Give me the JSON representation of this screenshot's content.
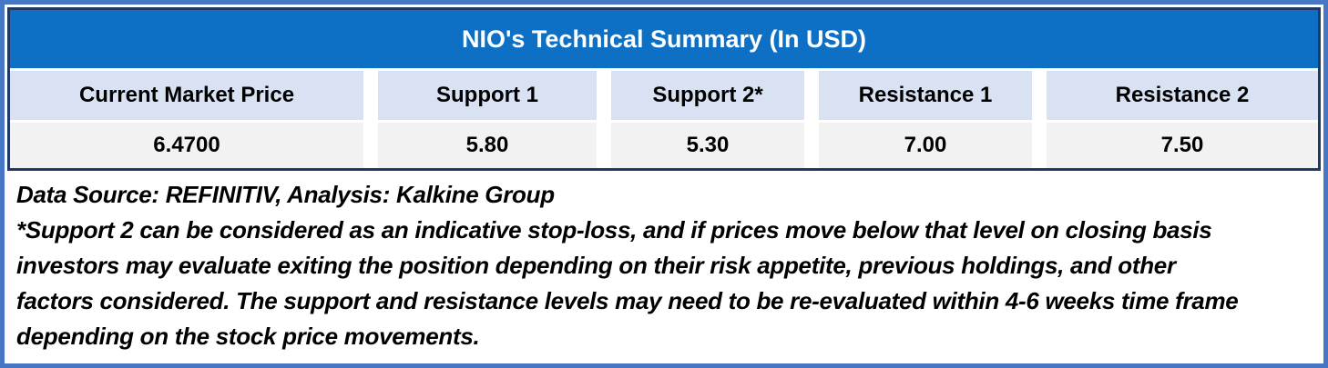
{
  "chart_data": {
    "type": "table",
    "title": "NIO's Technical Summary (In USD)",
    "columns": [
      "Current Market Price",
      "Support 1",
      "Support 2*",
      "Resistance 1",
      "Resistance 2"
    ],
    "rows": [
      [
        "6.4700",
        "5.80",
        "5.30",
        "7.00",
        "7.50"
      ]
    ],
    "layout_hints": {
      "title_position": "top-center-banner",
      "grid": "off",
      "column_separators": "white-gaps"
    }
  },
  "notes": {
    "source": "Data Source: REFINITIV, Analysis: Kalkine Group",
    "disclaimer_lines": [
      "*Support 2 can be considered as an indicative stop-loss, and if prices move below that level on closing basis",
      "investors may evaluate exiting the position depending on their risk appetite, previous holdings, and other",
      "factors considered. The support and resistance levels may need to be re-evaluated within 4-6 weeks time frame",
      "depending on the stock price movements."
    ]
  },
  "colors": {
    "outer_frame_blue": "#4777C4",
    "table_border_navy": "#1F3864",
    "title_bar_blue": "#0D70C5",
    "header_row_blue": "#D9E2F3",
    "value_row_gray": "#F2F2F2",
    "title_text": "#FFFFFF",
    "body_text": "#000000"
  }
}
